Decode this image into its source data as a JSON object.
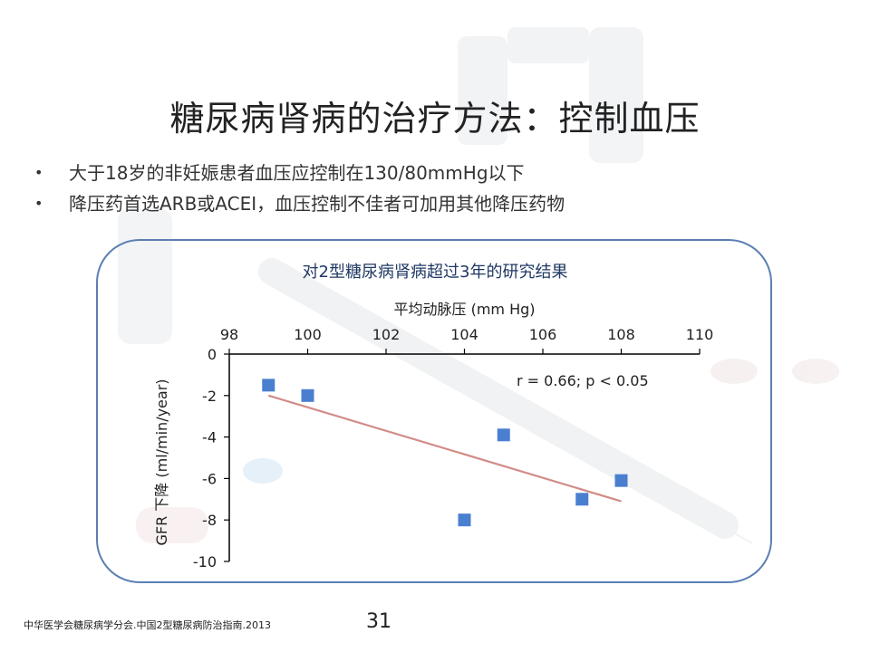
{
  "slide": {
    "title": "糖尿病肾病的治疗方法：控制血压",
    "bullets": [
      "大于18岁的非妊娠患者血压应控制在130/80mmHg以下",
      "降压药首选ARB或ACEI，血压控制不佳者可加用其他降压药物"
    ],
    "bullet_symbol": "•",
    "source": "中华医学会糖尿病学分会.中国2型糖尿病防治指南.2013",
    "page_number": "31"
  },
  "chart_data": {
    "type": "scatter",
    "title": "对2型糖尿病肾病超过3年的研究结果",
    "xlabel": "平均动脉压 (mm Hg)",
    "ylabel": "GFR 下降  (ml/min/year)",
    "xlim": [
      98,
      110
    ],
    "ylim": [
      -10,
      0
    ],
    "x_ticks": [
      98,
      100,
      102,
      104,
      106,
      108,
      110
    ],
    "y_ticks": [
      0,
      -2,
      -4,
      -6,
      -8,
      -10
    ],
    "x_axis_position": "top",
    "grid": false,
    "points": [
      {
        "x": 99,
        "y": -1.5
      },
      {
        "x": 100,
        "y": -2
      },
      {
        "x": 104,
        "y": -8
      },
      {
        "x": 105,
        "y": -3.9
      },
      {
        "x": 107,
        "y": -7
      },
      {
        "x": 108,
        "y": -6.1
      }
    ],
    "trendline": {
      "x": [
        99,
        108
      ],
      "y": [
        -2,
        -7.1
      ]
    },
    "annotation": "r = 0.66; p < 0.05",
    "colors": {
      "points": "#4a7fd0",
      "trendline": "#d28c86",
      "axis": "#000000"
    }
  }
}
